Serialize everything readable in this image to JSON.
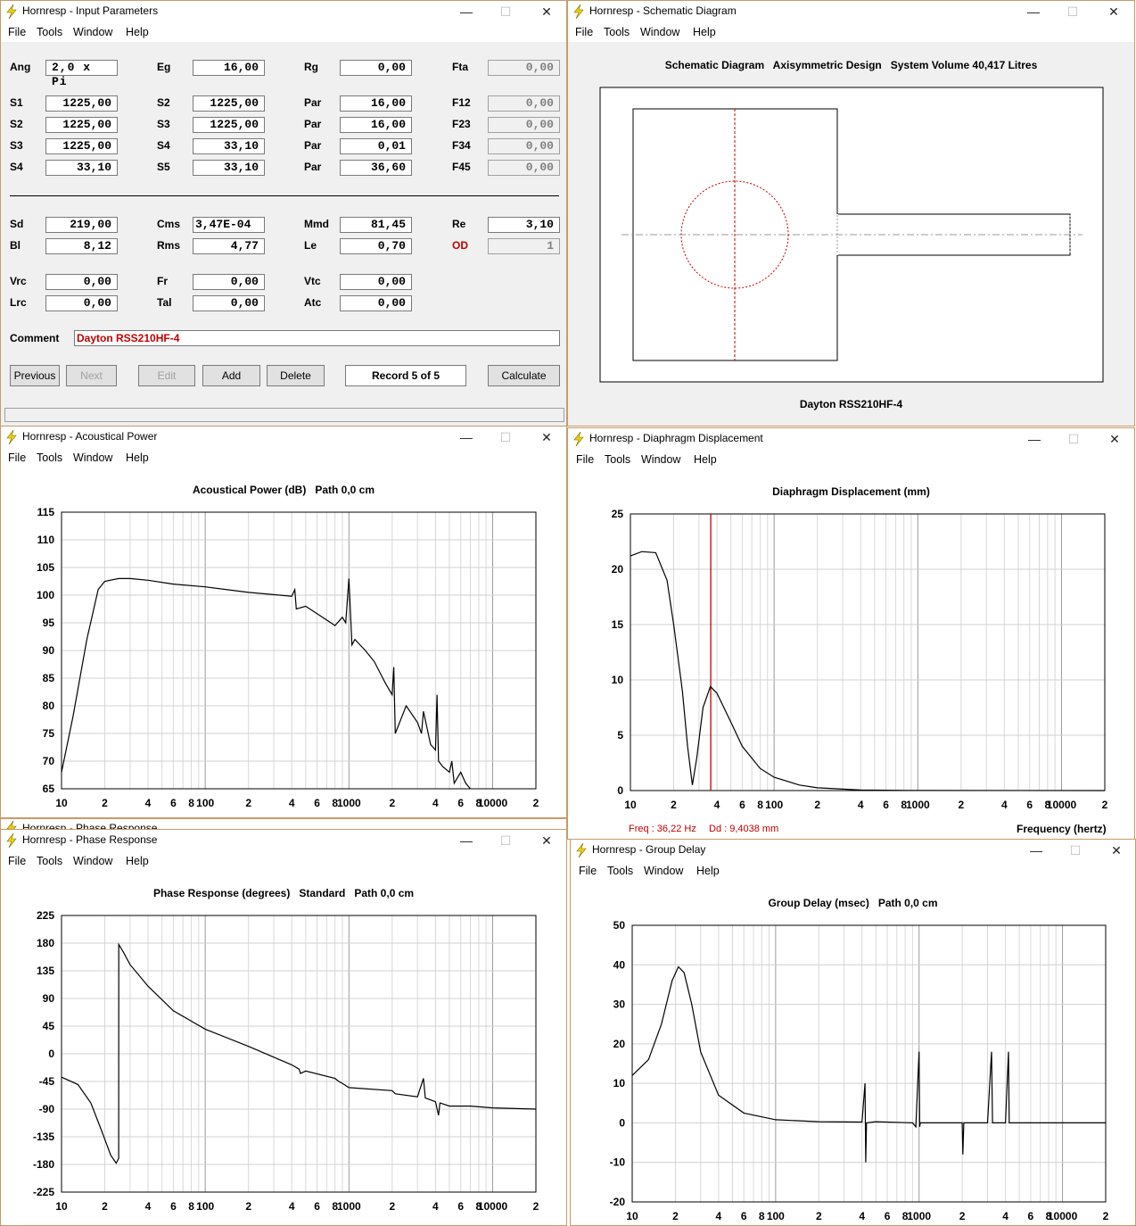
{
  "menu": [
    "File",
    "Tools",
    "Window",
    "Help"
  ],
  "input_params": {
    "title": "Hornresp - Input Parameters",
    "rows1": [
      [
        [
          "Ang",
          "2,0 x Pi",
          false
        ],
        [
          "Eg",
          "16,00",
          false
        ],
        [
          "Rg",
          "0,00",
          false
        ],
        [
          "Fta",
          "0,00",
          true
        ]
      ]
    ],
    "rows2": [
      [
        [
          "S1",
          "1225,00",
          false
        ],
        [
          "S2",
          "1225,00",
          false
        ],
        [
          "Par",
          "16,00",
          false
        ],
        [
          "F12",
          "0,00",
          true
        ]
      ],
      [
        [
          "S2",
          "1225,00",
          false
        ],
        [
          "S3",
          "1225,00",
          false
        ],
        [
          "Par",
          "16,00",
          false
        ],
        [
          "F23",
          "0,00",
          true
        ]
      ],
      [
        [
          "S3",
          "1225,00",
          false
        ],
        [
          "S4",
          "33,10",
          false
        ],
        [
          "Par",
          "0,01",
          false
        ],
        [
          "F34",
          "0,00",
          true
        ]
      ],
      [
        [
          "S4",
          "33,10",
          false
        ],
        [
          "S5",
          "33,10",
          false
        ],
        [
          "Par",
          "36,60",
          false
        ],
        [
          "F45",
          "0,00",
          true
        ]
      ]
    ],
    "rows3": [
      [
        [
          "Sd",
          "219,00",
          false
        ],
        [
          "Cms",
          "3,47E-04",
          false
        ],
        [
          "Mmd",
          "81,45",
          false
        ],
        [
          "Re",
          "3,10",
          false
        ]
      ],
      [
        [
          "Bl",
          "8,12",
          false
        ],
        [
          "Rms",
          "4,77",
          false
        ],
        [
          "Le",
          "0,70",
          false
        ],
        [
          "OD",
          "1",
          true
        ]
      ]
    ],
    "rows4": [
      [
        [
          "Vrc",
          "0,00",
          false
        ],
        [
          "Fr",
          "0,00",
          false
        ],
        [
          "Vtc",
          "0,00",
          false
        ]
      ],
      [
        [
          "Lrc",
          "0,00",
          false
        ],
        [
          "Tal",
          "0,00",
          false
        ],
        [
          "Atc",
          "0,00",
          false
        ]
      ]
    ],
    "comment_label": "Comment",
    "comment": "Dayton RSS210HF-4",
    "buttons": {
      "previous": "Previous",
      "next": "Next",
      "edit": "Edit",
      "add": "Add",
      "delete": "Delete",
      "record": "Record 5 of 5",
      "calculate": "Calculate"
    }
  },
  "schematic": {
    "title": "Hornresp - Schematic Diagram",
    "heading": "Schematic Diagram   Axisymmetric Design   System Volume 40,417 Litres",
    "caption": "Dayton RSS210HF-4"
  },
  "acoustical": {
    "title": "Hornresp - Acoustical Power",
    "heading": "Acoustical Power (dB)   Path 0,0 cm"
  },
  "displacement": {
    "title": "Hornresp - Diaphragm Displacement",
    "heading": "Diaphragm Displacement (mm)",
    "freq_readout": "Freq : 36,22 Hz",
    "dd_readout": "Dd : 9,4038 mm",
    "xlabel": "Frequency (hertz)"
  },
  "phase": {
    "title": "Hornresp - Phase Response",
    "heading": "Phase Response (degrees)   Standard   Path 0,0 cm",
    "hidden_title": "Hornresp - Phase Response"
  },
  "group": {
    "title": "Hornresp - Group Delay",
    "heading": "Group Delay (msec)   Path 0,0 cm"
  },
  "x_ticks": [
    {
      "f": 10,
      "t": "10"
    },
    {
      "f": 20,
      "t": "2"
    },
    {
      "f": 40,
      "t": "4"
    },
    {
      "f": 60,
      "t": "6"
    },
    {
      "f": 80,
      "t": "8"
    },
    {
      "f": 100,
      "t": "100"
    },
    {
      "f": 200,
      "t": "2"
    },
    {
      "f": 400,
      "t": "4"
    },
    {
      "f": 600,
      "t": "6"
    },
    {
      "f": 800,
      "t": "8"
    },
    {
      "f": 1000,
      "t": "1000"
    },
    {
      "f": 2000,
      "t": "2"
    },
    {
      "f": 4000,
      "t": "4"
    },
    {
      "f": 6000,
      "t": "6"
    },
    {
      "f": 8000,
      "t": "8"
    },
    {
      "f": 10000,
      "t": "10000"
    },
    {
      "f": 20000,
      "t": "2"
    }
  ],
  "chart_data": [
    {
      "type": "line",
      "title": "Acoustical Power (dB)   Path 0,0 cm",
      "xlim": [
        10,
        20000
      ],
      "xscale": "log",
      "ylim": [
        65,
        115
      ],
      "yticks": [
        115,
        110,
        105,
        100,
        95,
        90,
        85,
        80,
        75,
        70,
        65
      ],
      "x": [
        10,
        12,
        15,
        18,
        20,
        25,
        30,
        40,
        60,
        100,
        200,
        400,
        420,
        430,
        500,
        700,
        800,
        900,
        950,
        1000,
        1050,
        1100,
        1300,
        1500,
        1800,
        2000,
        2050,
        2100,
        2500,
        3000,
        3200,
        3300,
        3700,
        4000,
        4100,
        4200,
        4500,
        5000,
        5200,
        5400,
        6000,
        6500,
        7000
      ],
      "y": [
        68,
        78,
        92,
        101,
        102.5,
        103,
        103,
        102.7,
        102,
        101.5,
        100.5,
        99.8,
        101,
        97.5,
        98,
        95.5,
        94.5,
        96,
        95,
        103,
        91,
        92,
        90,
        88,
        84,
        82,
        87,
        75,
        80,
        77,
        75,
        79,
        73,
        72,
        82,
        70,
        69,
        68,
        70,
        66,
        68,
        66,
        65
      ]
    },
    {
      "type": "line",
      "title": "Diaphragm Displacement (mm)",
      "xlim": [
        10,
        20000
      ],
      "xscale": "log",
      "ylim": [
        0,
        25
      ],
      "yticks": [
        25,
        20,
        15,
        10,
        5,
        0
      ],
      "marker_x": 36.22,
      "x": [
        10,
        12,
        15,
        18,
        20,
        23,
        25,
        27,
        29,
        32,
        36,
        40,
        50,
        60,
        80,
        100,
        150,
        200,
        400,
        1000,
        20000
      ],
      "y": [
        21.2,
        21.6,
        21.5,
        19,
        15,
        9,
        4,
        0.5,
        3,
        7.5,
        9.4,
        8.8,
        6.2,
        4,
        2,
        1.2,
        0.5,
        0.25,
        0.05,
        0.01,
        0
      ]
    },
    {
      "type": "line",
      "title": "Phase Response (degrees)   Standard   Path 0,0 cm",
      "xlim": [
        10,
        20000
      ],
      "xscale": "log",
      "ylim": [
        -225,
        225
      ],
      "yticks": [
        225,
        180,
        135,
        90,
        45,
        0,
        -45,
        -90,
        -135,
        -180,
        -225
      ],
      "x": [
        10,
        13,
        16,
        19,
        22,
        24,
        25,
        25.01,
        27,
        30,
        40,
        60,
        100,
        200,
        400,
        450,
        460,
        500,
        800,
        850,
        900,
        1000,
        2000,
        2100,
        3000,
        3300,
        3400,
        4000,
        4200,
        4300,
        5000,
        7000,
        10000,
        20000
      ],
      "y": [
        -38,
        -50,
        -80,
        -125,
        -165,
        -178,
        -170,
        178,
        165,
        145,
        110,
        70,
        40,
        12,
        -18,
        -25,
        -32,
        -28,
        -40,
        -45,
        -48,
        -55,
        -60,
        -65,
        -70,
        -40,
        -72,
        -78,
        -100,
        -80,
        -85,
        -85,
        -88,
        -90
      ]
    },
    {
      "type": "line",
      "title": "Group Delay (msec)   Path 0,0 cm",
      "xlim": [
        10,
        20000
      ],
      "xscale": "log",
      "ylim": [
        -20,
        50
      ],
      "yticks": [
        50,
        40,
        30,
        20,
        10,
        0,
        -10,
        -20
      ],
      "x": [
        10,
        13,
        16,
        19,
        21,
        23,
        26,
        30,
        40,
        60,
        100,
        200,
        400,
        420,
        425,
        430,
        500,
        900,
        950,
        1000,
        1010,
        1020,
        1500,
        2000,
        2020,
        2050,
        3000,
        3200,
        3250,
        3300,
        4000,
        4200,
        4250,
        4300,
        20000
      ],
      "y": [
        12,
        16,
        25,
        36,
        39.5,
        38,
        30,
        18,
        7,
        2.5,
        0.8,
        0.3,
        0.2,
        10,
        -10,
        0,
        0.3,
        0,
        -1,
        18,
        -1,
        0,
        0,
        0,
        -8,
        0,
        0,
        18,
        0,
        0,
        0,
        18,
        0,
        0,
        0
      ]
    }
  ]
}
